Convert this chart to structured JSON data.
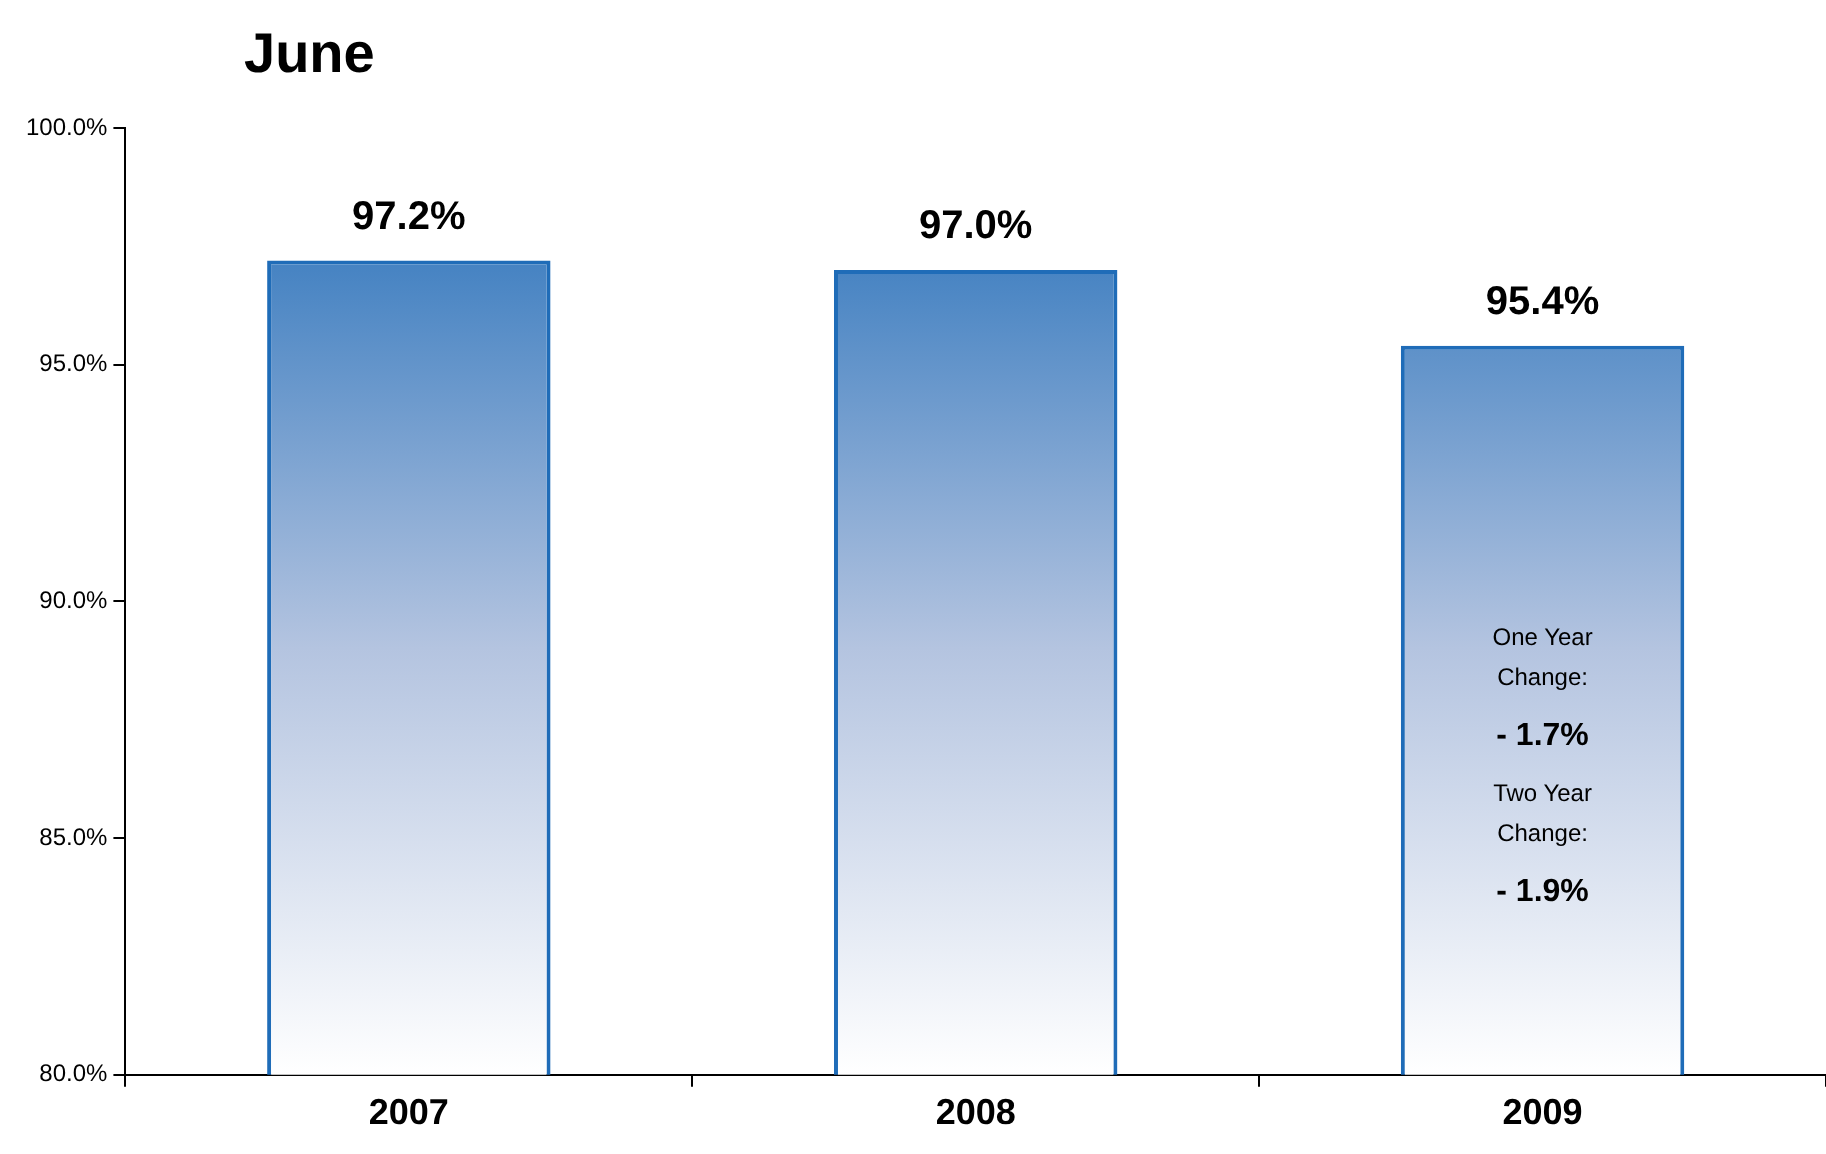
{
  "chart_data": {
    "type": "bar",
    "title": "June",
    "categories": [
      "2007",
      "2008",
      "2009"
    ],
    "values": [
      97.2,
      97.0,
      95.4
    ],
    "color": "#1f6cb8",
    "ylim": [
      80,
      100
    ],
    "yticks": [
      {
        "value": 80,
        "label": "80.0%"
      },
      {
        "value": 85,
        "label": "85.0%"
      },
      {
        "value": 90,
        "label": "90.0%"
      },
      {
        "value": 95,
        "label": "95.0%"
      },
      {
        "value": 100,
        "label": "100.0%"
      }
    ],
    "value_labels": [
      "97.2%",
      "97.0%",
      "95.4%"
    ],
    "grid": false,
    "legend": false,
    "annotations": [
      "One Year Change:",
      "- 1.7%",
      "Two Year Change:",
      "- 1.9%"
    ]
  }
}
